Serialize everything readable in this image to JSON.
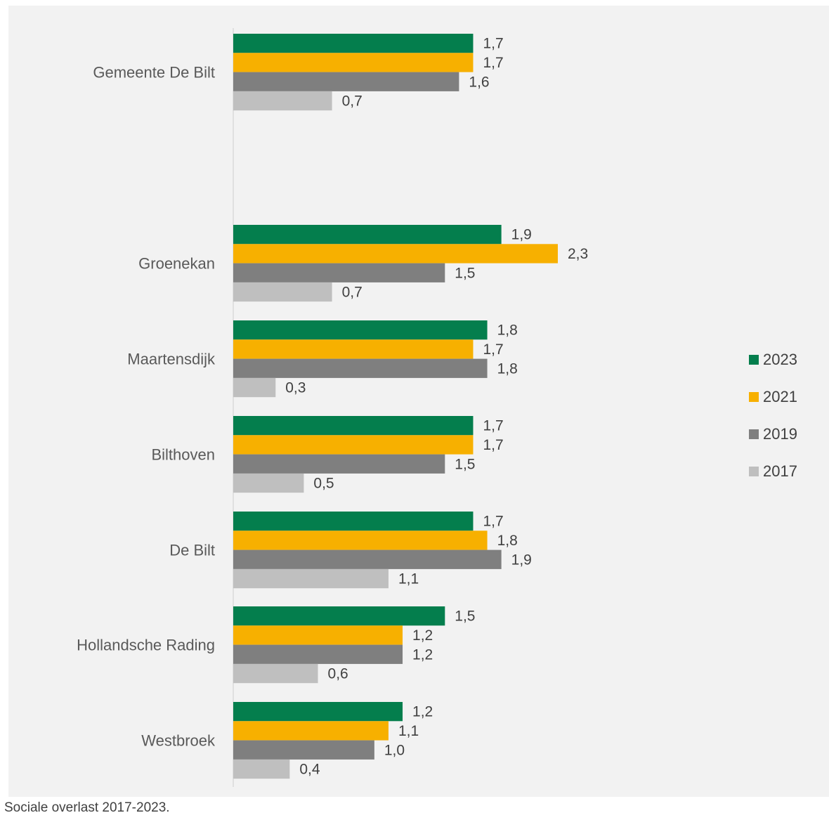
{
  "caption": "Sociale overlast 2017-2023.",
  "chart_data": {
    "type": "bar",
    "orientation": "horizontal",
    "categories": [
      "Gemeente De Bilt",
      "Groenekan",
      "Maartensdijk",
      "Bilthoven",
      "De Bilt",
      "Hollandsche Rading",
      "Westbroek"
    ],
    "series": [
      {
        "name": "2023",
        "color": "#047e4d",
        "values": [
          1.7,
          1.9,
          1.8,
          1.7,
          1.7,
          1.5,
          1.2
        ],
        "labels": [
          "1,7",
          "1,9",
          "1,8",
          "1,7",
          "1,7",
          "1,5",
          "1,2"
        ]
      },
      {
        "name": "2021",
        "color": "#f7b000",
        "values": [
          1.7,
          2.3,
          1.7,
          1.7,
          1.8,
          1.2,
          1.1
        ],
        "labels": [
          "1,7",
          "2,3",
          "1,7",
          "1,7",
          "1,8",
          "1,2",
          "1,1"
        ]
      },
      {
        "name": "2019",
        "color": "#7f7f7f",
        "values": [
          1.6,
          1.5,
          1.8,
          1.5,
          1.9,
          1.2,
          1.0
        ],
        "labels": [
          "1,6",
          "1,5",
          "1,8",
          "1,5",
          "1,9",
          "1,2",
          "1,0"
        ]
      },
      {
        "name": "2017",
        "color": "#bfbfbf",
        "values": [
          0.7,
          0.7,
          0.3,
          0.5,
          1.1,
          0.6,
          0.4
        ],
        "labels": [
          "0,7",
          "0,7",
          "0,3",
          "0,5",
          "1,1",
          "0,6",
          "0,4"
        ]
      }
    ],
    "title": "",
    "xlabel": "",
    "ylabel": "",
    "xlim": [
      0,
      2.3
    ],
    "grid": false,
    "legend": "right"
  }
}
